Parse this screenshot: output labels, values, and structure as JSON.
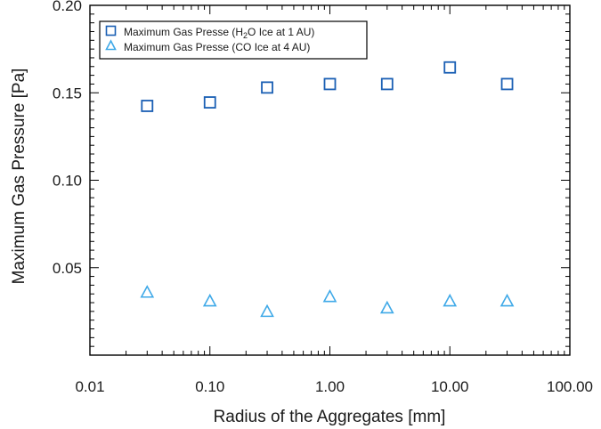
{
  "chart_data": {
    "type": "scatter",
    "xlabel": "Radius of the Aggregates [mm]",
    "ylabel": "Maximum Gas Pressure [Pa]",
    "xscale": "log",
    "xlim": [
      0.01,
      100.0
    ],
    "ylim": [
      0.0,
      0.2
    ],
    "xticks": [
      0.01,
      0.1,
      1.0,
      10.0,
      100.0
    ],
    "xtick_labels": [
      "0.01",
      "0.10",
      "1.00",
      "10.00",
      "100.00"
    ],
    "yticks": [
      0.05,
      0.1,
      0.15,
      0.2
    ],
    "ytick_labels": [
      "0.05",
      "0.10",
      "0.15",
      "0.20"
    ],
    "grid": false,
    "legend_position": "top-left",
    "series": [
      {
        "name": "Maximum Gas Presse (H₂O Ice at 1 AU)",
        "legend_main": "Maximum Gas Presse (H",
        "legend_sub": "2",
        "legend_tail": "O Ice at 1 AU)",
        "marker": "square",
        "color": "#1a5fb4",
        "x": [
          0.03,
          0.1,
          0.3,
          1.0,
          3.0,
          10.0,
          30.0
        ],
        "y": [
          0.1425,
          0.1445,
          0.153,
          0.155,
          0.155,
          0.1645,
          0.155
        ]
      },
      {
        "name": "Maximum Gas Presse (CO Ice at 4 AU)",
        "legend_main": "Maximum Gas Presse (CO Ice at 4 AU)",
        "marker": "triangle",
        "color": "#3fa9e8",
        "x": [
          0.03,
          0.1,
          0.3,
          1.0,
          3.0,
          10.0,
          30.0
        ],
        "y": [
          0.036,
          0.031,
          0.025,
          0.0335,
          0.027,
          0.031,
          0.031
        ]
      }
    ]
  }
}
